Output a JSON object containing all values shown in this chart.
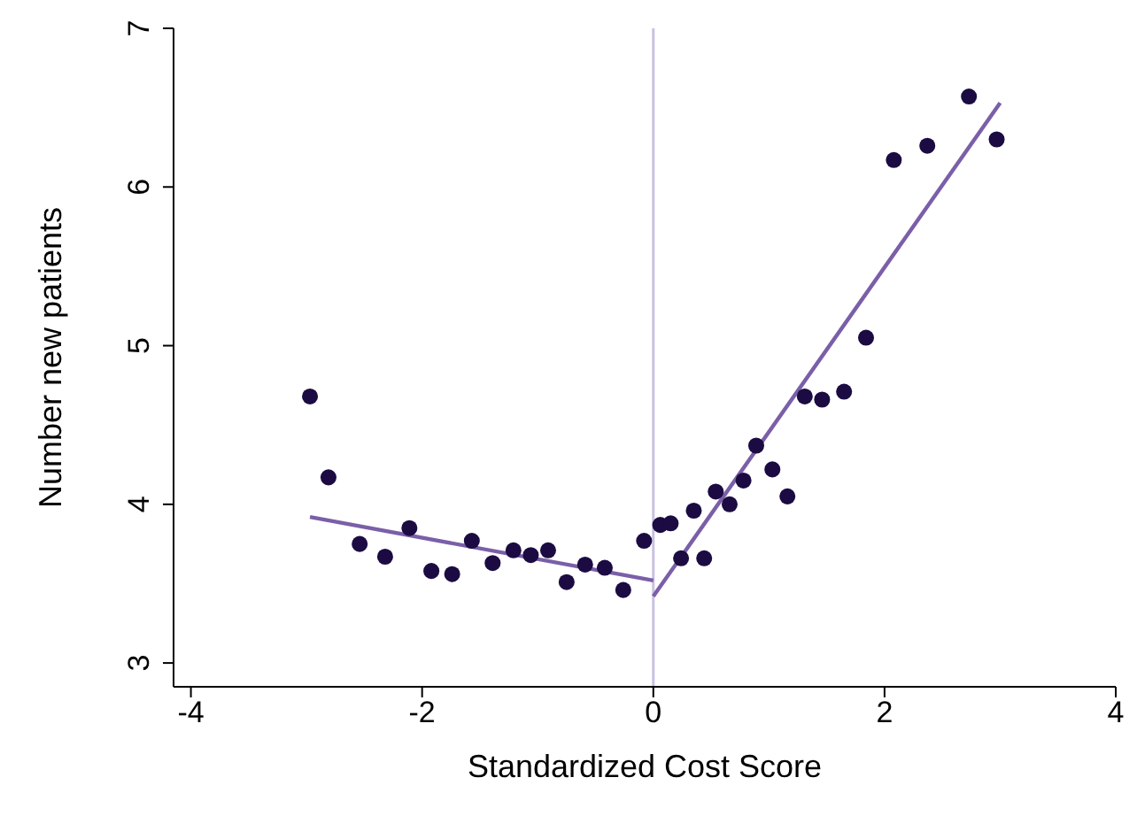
{
  "chart_data": {
    "type": "scatter",
    "xlabel": "Standardized Cost Score",
    "ylabel": "Number new patients",
    "xlim": [
      -4.15,
      4
    ],
    "ylim": [
      2.85,
      7
    ],
    "xticks": [
      -4,
      -2,
      0,
      2,
      4
    ],
    "yticks": [
      3,
      4,
      5,
      6,
      7
    ],
    "grid": false,
    "ref_lines": [
      {
        "axis": "x",
        "value": 0,
        "color": "#c9c1e1"
      }
    ],
    "series": [
      {
        "marker": "circle",
        "color": "#1b0b42",
        "x": [
          -2.97,
          -2.81,
          -2.54,
          -2.32,
          -2.11,
          -1.92,
          -1.74,
          -1.57,
          -1.39,
          -1.21,
          -1.06,
          -0.91,
          -0.75,
          -0.59,
          -0.42,
          -0.26,
          -0.08,
          0.06,
          0.15,
          0.24,
          0.35,
          0.44,
          0.54,
          0.66,
          0.78,
          0.89,
          1.03,
          1.16,
          1.31,
          1.46,
          1.65,
          1.84,
          2.08,
          2.37,
          2.73,
          2.97
        ],
        "values": [
          4.68,
          4.17,
          3.75,
          3.67,
          3.85,
          3.58,
          3.56,
          3.77,
          3.63,
          3.71,
          3.68,
          3.71,
          3.51,
          3.62,
          3.6,
          3.46,
          3.77,
          3.87,
          3.88,
          3.66,
          3.96,
          3.66,
          4.08,
          4.0,
          4.15,
          4.37,
          4.22,
          4.05,
          4.68,
          4.66,
          4.71,
          5.05,
          6.17,
          6.26,
          6.57,
          6.3
        ]
      },
      {
        "type": "line",
        "marker": "none",
        "color": "#7a5fa8",
        "x": [
          -2.97,
          0
        ],
        "values": [
          3.92,
          3.52
        ]
      },
      {
        "type": "line",
        "marker": "none",
        "color": "#7a5fa8",
        "x": [
          0,
          3
        ],
        "values": [
          3.42,
          6.53
        ]
      }
    ]
  }
}
